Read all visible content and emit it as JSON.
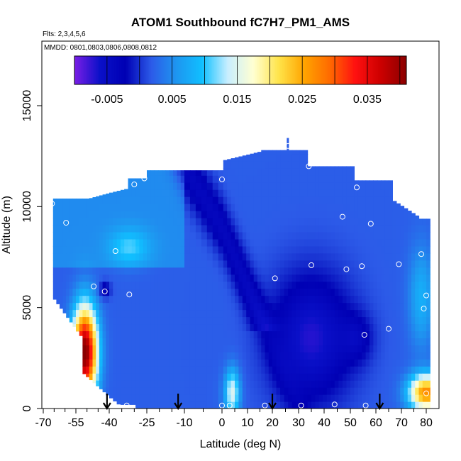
{
  "chart_data": {
    "type": "heatmap",
    "title": "ATOM1 Southbound fC7H7_PM1_AMS",
    "subtitle_flights": "Flts: 2,3,4,5,6",
    "subtitle_dates": "MMDD: 0801,0803,0806,0808,0812",
    "xlabel": "Latitude (deg N)",
    "ylabel": "Altitude (m)",
    "xlim": [
      -70,
      80
    ],
    "ylim": [
      0,
      17500
    ],
    "x_ticks": [
      -70,
      -55,
      -40,
      -25,
      -10,
      0,
      10,
      20,
      30,
      40,
      50,
      60,
      70,
      80
    ],
    "x_tick_labels": [
      "-70",
      "-55",
      "-40",
      "-25",
      "-10",
      "0",
      "10",
      "20",
      "30",
      "40",
      "50",
      "60",
      "70",
      "80"
    ],
    "x_minor_ticks": [
      -65,
      -60,
      -50,
      -45,
      -35,
      -30,
      -20,
      -15,
      -5,
      5,
      15,
      25,
      35,
      45,
      55,
      65,
      75
    ],
    "y_ticks": [
      0,
      5000,
      10000,
      15000
    ],
    "y_tick_labels": [
      "0",
      "5000",
      "10000",
      "15000"
    ],
    "colorbar": {
      "range": [
        -0.01,
        0.041
      ],
      "ticks": [
        -0.005,
        0.005,
        0.015,
        0.025,
        0.035
      ],
      "tick_labels": [
        "-0.005",
        "0.005",
        "0.015",
        "0.025",
        "0.035"
      ],
      "color_stops": [
        "#7a1ee6",
        "#0a10c8",
        "#0000b4",
        "#2c5ae8",
        "#1e96f0",
        "#10c0ff",
        "#c8eeff",
        "#ffffd2",
        "#ffe44a",
        "#ffa400",
        "#ff6a00",
        "#ff1010",
        "#cc0000",
        "#8a0000"
      ]
    },
    "sounding_arrows_lat": [
      -41,
      -12.5,
      20,
      61.5
    ],
    "sample_points": [
      {
        "lat": -67,
        "alt": 10150
      },
      {
        "lat": -66,
        "alt": 10150
      },
      {
        "lat": -59.5,
        "alt": 9200
      },
      {
        "lat": -47,
        "alt": 6050
      },
      {
        "lat": -42,
        "alt": 5800
      },
      {
        "lat": -37.5,
        "alt": 7800
      },
      {
        "lat": -32,
        "alt": 5650
      },
      {
        "lat": -30,
        "alt": 11100
      },
      {
        "lat": -26,
        "alt": 11400
      },
      {
        "lat": 0,
        "alt": 11350
      },
      {
        "lat": 21,
        "alt": 6450
      },
      {
        "lat": 26,
        "alt": 13000
      },
      {
        "lat": 34,
        "alt": 12000
      },
      {
        "lat": 35,
        "alt": 7100
      },
      {
        "lat": 47,
        "alt": 9500
      },
      {
        "lat": 48.5,
        "alt": 6900
      },
      {
        "lat": 52.5,
        "alt": 10950
      },
      {
        "lat": 54.5,
        "alt": 7050
      },
      {
        "lat": 55.5,
        "alt": 3650
      },
      {
        "lat": 58,
        "alt": 9150
      },
      {
        "lat": 65,
        "alt": 3950
      },
      {
        "lat": 69,
        "alt": 7150
      },
      {
        "lat": 72,
        "alt": 11350
      },
      {
        "lat": 77,
        "alt": 9700
      },
      {
        "lat": 78,
        "alt": 7650
      },
      {
        "lat": 79,
        "alt": 4950
      },
      {
        "lat": 80,
        "alt": 5600
      },
      {
        "lat": 80,
        "alt": 750
      },
      {
        "lat": -33,
        "alt": 150
      },
      {
        "lat": 0,
        "alt": 150
      },
      {
        "lat": 3,
        "alt": 150
      },
      {
        "lat": 17,
        "alt": 150
      },
      {
        "lat": 31,
        "alt": 150
      },
      {
        "lat": 44,
        "alt": 200
      },
      {
        "lat": 56,
        "alt": 150
      }
    ]
  }
}
